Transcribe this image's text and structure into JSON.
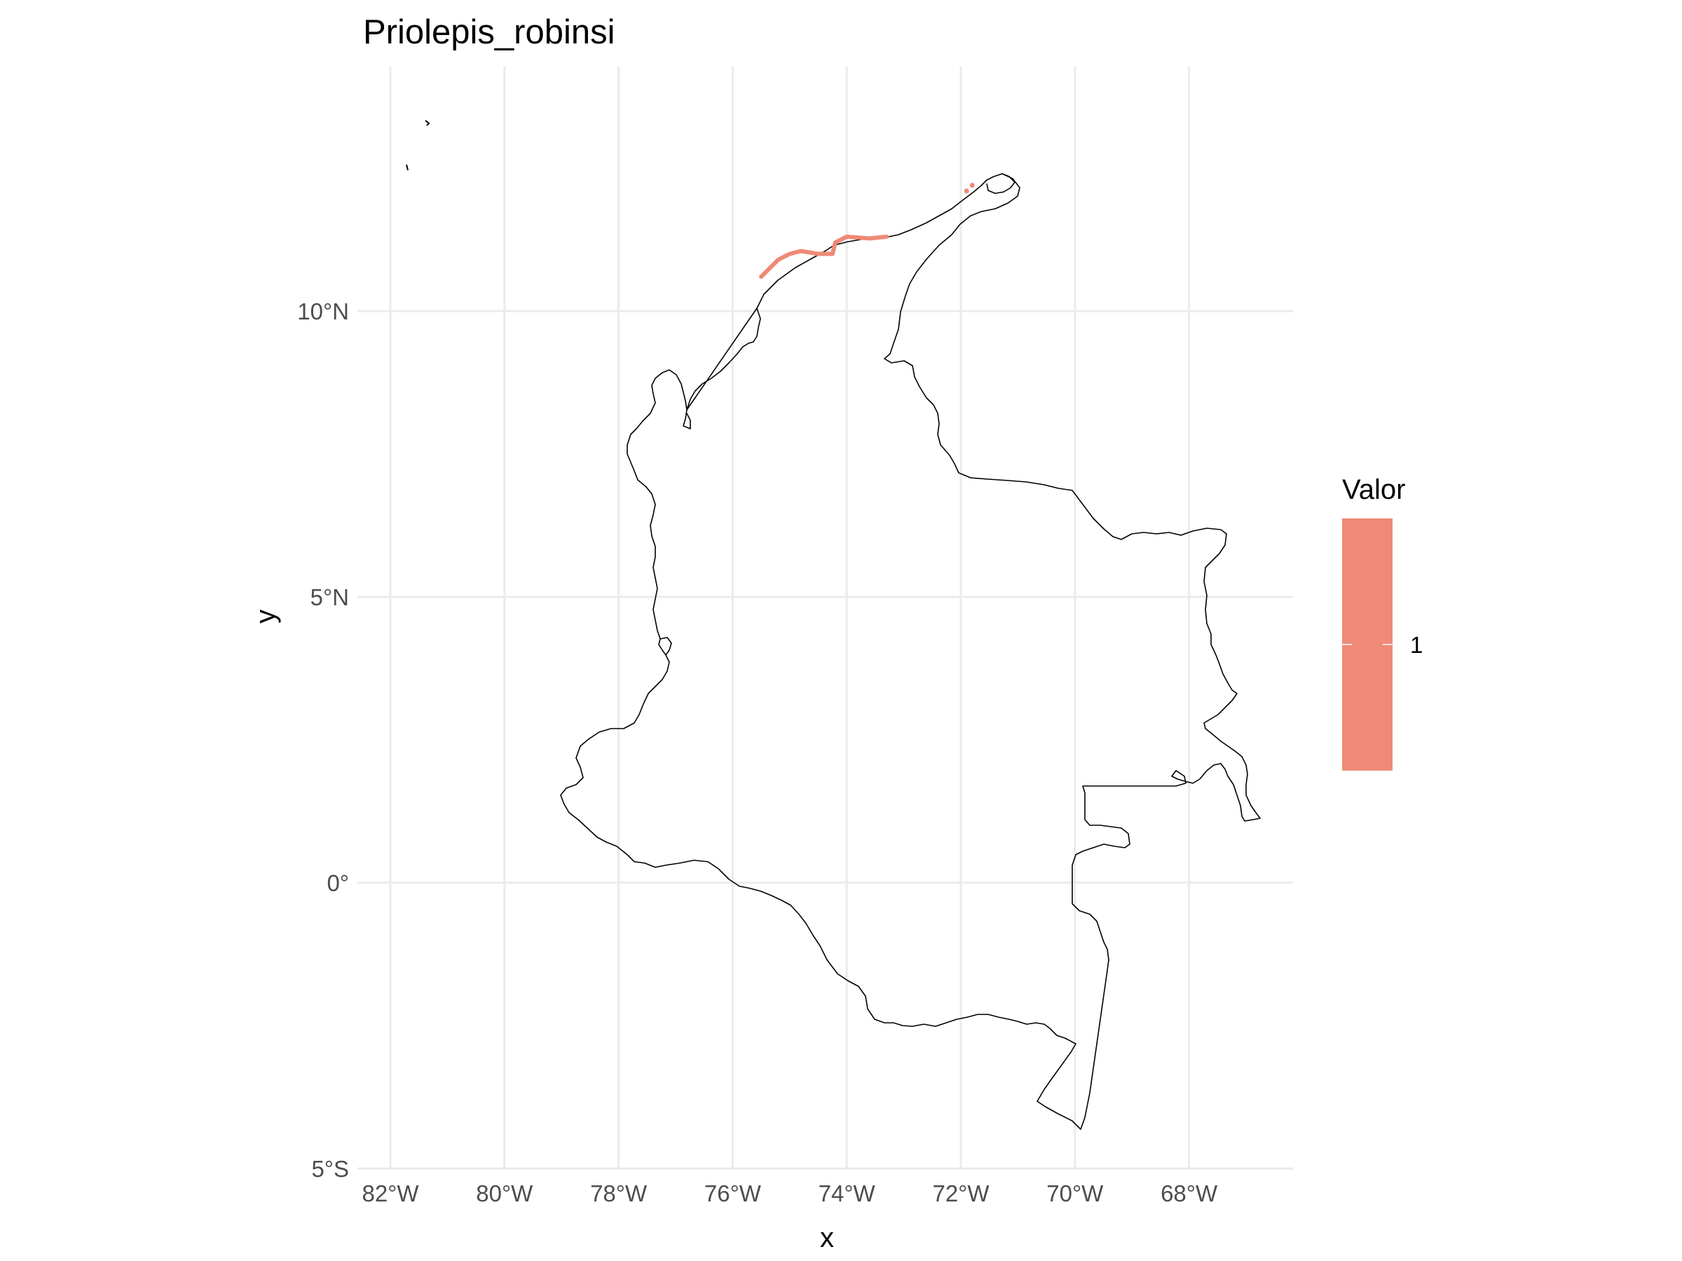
{
  "title": "Priolepis_robinsi",
  "chart_data": {
    "type": "map",
    "title": "Priolepis_robinsi",
    "xlabel": "x",
    "ylabel": "y",
    "xlim": [
      -82.5,
      -66.5
    ],
    "ylim": [
      -5,
      14
    ],
    "x_ticks": [
      {
        "value": -82,
        "label": "82°W"
      },
      {
        "value": -80,
        "label": "80°W"
      },
      {
        "value": -78,
        "label": "78°W"
      },
      {
        "value": -76,
        "label": "76°W"
      },
      {
        "value": -74,
        "label": "74°W"
      },
      {
        "value": -72,
        "label": "72°W"
      },
      {
        "value": -70,
        "label": "70°W"
      },
      {
        "value": -68,
        "label": "68°W"
      }
    ],
    "y_ticks": [
      {
        "value": 10,
        "label": "10°N"
      },
      {
        "value": 5,
        "label": "5°N"
      },
      {
        "value": 0,
        "label": "0°"
      },
      {
        "value": -5,
        "label": "5°S"
      }
    ],
    "grid": true,
    "legend": {
      "title": "Valor",
      "position": "right",
      "entries": [
        {
          "label": "1",
          "value": 1,
          "color": "#ee8a76"
        }
      ]
    },
    "presence_cells": {
      "value": 1,
      "color": "#ee8a76",
      "path_lonlat": [
        [
          -75.5,
          10.6
        ],
        [
          -75.2,
          10.9
        ],
        [
          -75.0,
          11.0
        ],
        [
          -74.8,
          11.05
        ],
        [
          -74.5,
          11.0
        ],
        [
          -74.25,
          11.0
        ],
        [
          -74.2,
          11.2
        ],
        [
          -74.0,
          11.3
        ],
        [
          -73.6,
          11.27
        ],
        [
          -73.3,
          11.3
        ]
      ],
      "extra_lonlat": [
        [
          -71.9,
          12.1
        ],
        [
          -71.8,
          12.2
        ]
      ]
    }
  },
  "colors": {
    "grid": "#ebebeb",
    "presence": "#ee8a76",
    "outline": "#000000"
  }
}
